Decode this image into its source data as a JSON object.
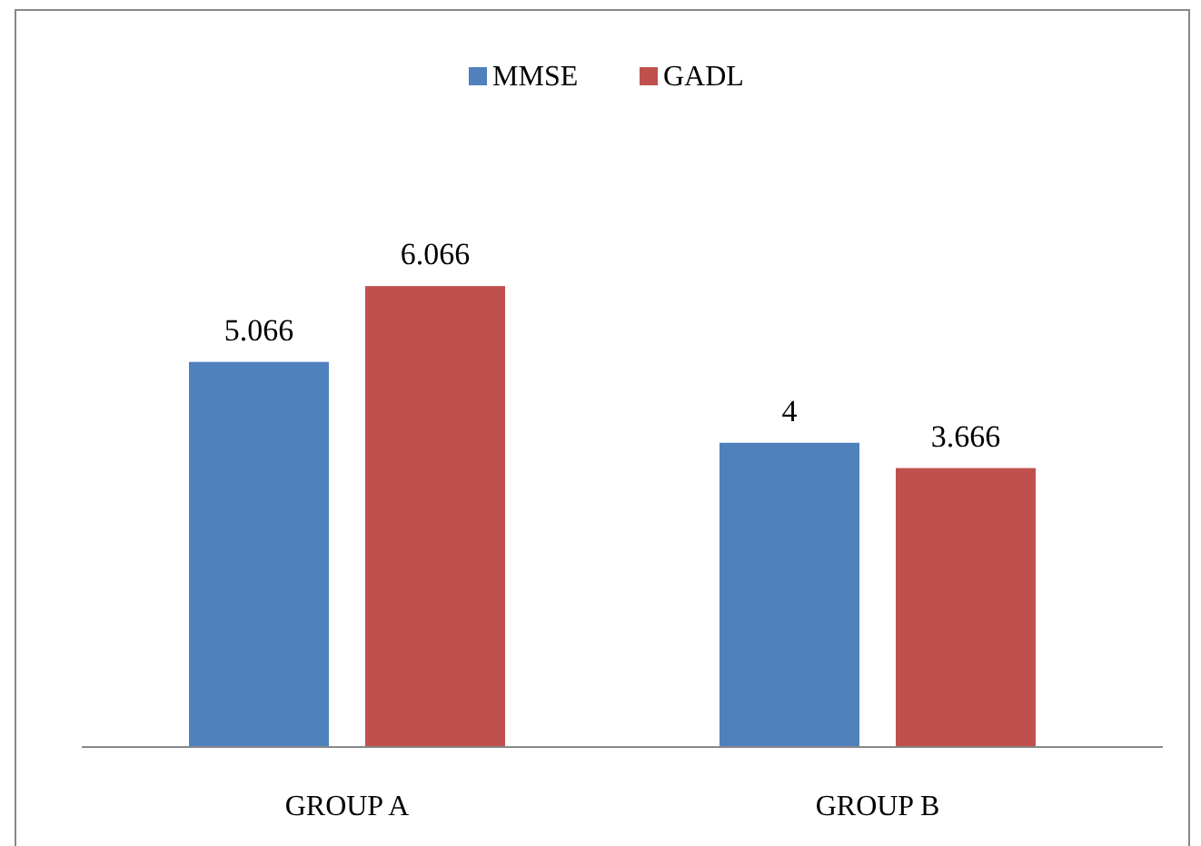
{
  "chart_data": {
    "type": "bar",
    "categories": [
      "GROUP A",
      "GROUP B"
    ],
    "series": [
      {
        "name": "MMSE",
        "color": "#4f81bd",
        "values": [
          5.066,
          4
        ]
      },
      {
        "name": "GADL",
        "color": "#c0504d",
        "values": [
          6.066,
          3.666
        ]
      }
    ],
    "data_labels": true,
    "legend": "top",
    "grid": false
  }
}
